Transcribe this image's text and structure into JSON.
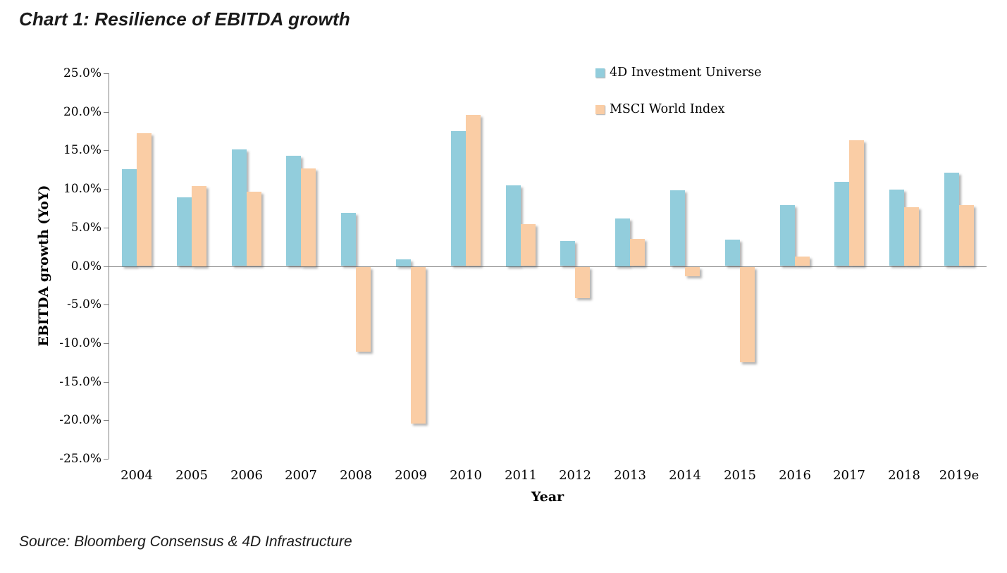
{
  "title": "Chart 1: Resilience of EBITDA growth",
  "source": "Source: Bloomberg Consensus & 4D Infrastructure",
  "colors": {
    "series1": "#92CDDC",
    "series2": "#FACDA5",
    "axis": "#808080",
    "text": "#000000"
  },
  "chart_data": {
    "type": "bar",
    "title": "Chart 1: Resilience of EBITDA growth",
    "xlabel": "Year",
    "ylabel": "EBITDA growth (YoY)",
    "ylim": [
      -25,
      25
    ],
    "ytick_step": 5,
    "ytick_labels": [
      "25.0%",
      "20.0%",
      "15.0%",
      "10.0%",
      "5.0%",
      "0.0%",
      "-5.0%",
      "-10.0%",
      "-15.0%",
      "-20.0%",
      "-25.0%"
    ],
    "grid": false,
    "legend_position": "top-right-inside",
    "categories": [
      "2004",
      "2005",
      "2006",
      "2007",
      "2008",
      "2009",
      "2010",
      "2011",
      "2012",
      "2013",
      "2014",
      "2015",
      "2016",
      "2017",
      "2018",
      "2019e"
    ],
    "series": [
      {
        "name": "4D Investment Universe",
        "color": "#92CDDC",
        "values": [
          12.6,
          8.9,
          15.1,
          14.3,
          6.9,
          0.9,
          17.5,
          10.5,
          3.2,
          6.2,
          9.8,
          3.4,
          7.9,
          10.9,
          9.9,
          12.1
        ]
      },
      {
        "name": "MSCI World Index",
        "color": "#FACDA5",
        "values": [
          17.2,
          10.4,
          9.6,
          12.7,
          -11.0,
          -20.3,
          19.6,
          5.4,
          -4.0,
          3.5,
          -1.2,
          -12.3,
          1.2,
          16.3,
          7.6,
          7.9
        ]
      }
    ]
  }
}
